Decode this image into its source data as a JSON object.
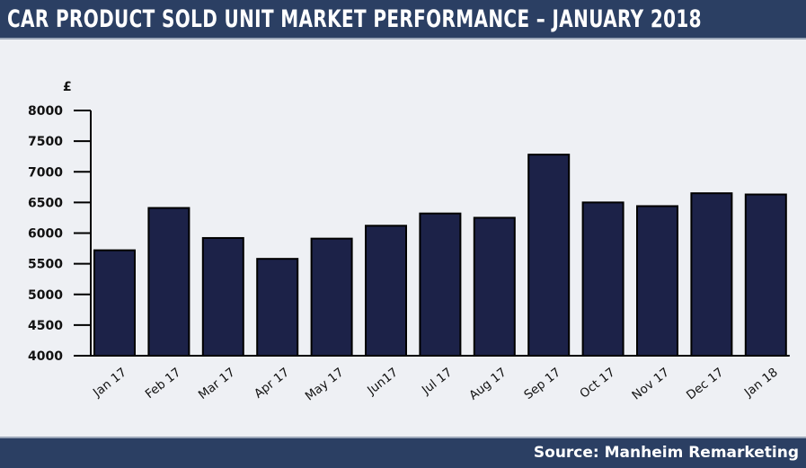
{
  "header": {
    "title": "CAR PRODUCT SOLD UNIT MARKET PERFORMANCE – JANUARY 2018"
  },
  "footer": {
    "source": "Source: Manheim Remarketing"
  },
  "colors": {
    "bar_fill": "#1c2248",
    "bar_stroke": "#000000",
    "band": "#2b3f63",
    "background": "#eef0f4"
  },
  "chart_data": {
    "type": "bar",
    "title": "CAR PRODUCT SOLD UNIT MARKET PERFORMANCE – JANUARY 2018",
    "ylabel": "£",
    "xlabel": "",
    "ylim": [
      4000,
      8000
    ],
    "yticks": [
      "4000",
      "4500",
      "5000",
      "5500",
      "6000",
      "6500",
      "7000",
      "7500",
      "8000"
    ],
    "categories": [
      "Jan 17",
      "Feb 17",
      "Mar 17",
      "Apr 17",
      "May 17",
      "Jun17",
      "Jul 17",
      "Aug 17",
      "Sep 17",
      "Oct 17",
      "Nov 17",
      "Dec 17",
      "Jan 18"
    ],
    "values": [
      5720,
      6410,
      5920,
      5580,
      5910,
      6120,
      6320,
      6250,
      7280,
      6500,
      6440,
      6650,
      6630
    ],
    "grid": false,
    "legend": "none"
  }
}
